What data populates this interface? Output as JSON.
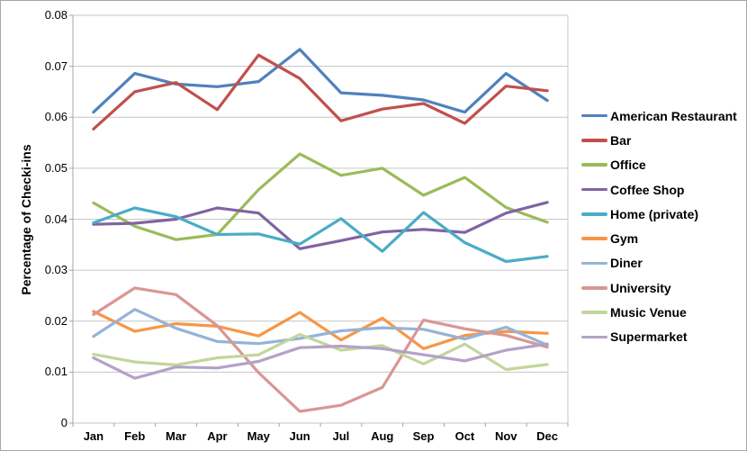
{
  "chart_data": {
    "type": "line",
    "title": "",
    "xlabel": "",
    "ylabel": "Percentage of Checki-ins",
    "x_categories": [
      "Jan",
      "Feb",
      "Mar",
      "Apr",
      "May",
      "Jun",
      "Jul",
      "Aug",
      "Sep",
      "Oct",
      "Nov",
      "Dec"
    ],
    "y_ticks": [
      "0",
      "0.01",
      "0.02",
      "0.03",
      "0.04",
      "0.05",
      "0.06",
      "0.07",
      "0.08"
    ],
    "ylim": [
      0,
      0.08
    ],
    "grid": "horizontal",
    "legend_position": "right",
    "series": [
      {
        "name": "American Restaurant",
        "color": "#4F81BD",
        "values": [
          0.061,
          0.0686,
          0.0665,
          0.066,
          0.067,
          0.0733,
          0.0648,
          0.0643,
          0.0634,
          0.061,
          0.0686,
          0.0633
        ]
      },
      {
        "name": "Bar",
        "color": "#C0504D",
        "values": [
          0.0577,
          0.065,
          0.0668,
          0.0615,
          0.0722,
          0.0676,
          0.0593,
          0.0616,
          0.0627,
          0.0588,
          0.0661,
          0.0652
        ]
      },
      {
        "name": "Office",
        "color": "#9BBB59",
        "values": [
          0.0432,
          0.0386,
          0.036,
          0.037,
          0.0458,
          0.0528,
          0.0486,
          0.05,
          0.0447,
          0.0482,
          0.0423,
          0.0394
        ]
      },
      {
        "name": "Coffee Shop",
        "color": "#8064A2",
        "values": [
          0.039,
          0.0392,
          0.04,
          0.0422,
          0.0412,
          0.0342,
          0.0358,
          0.0375,
          0.038,
          0.0374,
          0.0412,
          0.0433
        ]
      },
      {
        "name": "Home (private)",
        "color": "#4BACC6",
        "values": [
          0.0393,
          0.0422,
          0.0405,
          0.037,
          0.0371,
          0.0351,
          0.0401,
          0.0337,
          0.0413,
          0.0354,
          0.0317,
          0.0327
        ]
      },
      {
        "name": "Gym",
        "color": "#F79646",
        "values": [
          0.0219,
          0.018,
          0.0195,
          0.019,
          0.0171,
          0.0217,
          0.0163,
          0.0206,
          0.0146,
          0.0172,
          0.018,
          0.0176
        ]
      },
      {
        "name": "Diner",
        "color": "#95B3D7",
        "values": [
          0.017,
          0.0223,
          0.0186,
          0.016,
          0.0156,
          0.0166,
          0.0181,
          0.0187,
          0.0184,
          0.0165,
          0.0188,
          0.0153
        ]
      },
      {
        "name": "University",
        "color": "#D99694",
        "values": [
          0.0213,
          0.0265,
          0.0252,
          0.0191,
          0.0099,
          0.0023,
          0.0035,
          0.007,
          0.0202,
          0.0185,
          0.0172,
          0.0149
        ]
      },
      {
        "name": "Music Venue",
        "color": "#C3D69B",
        "values": [
          0.0135,
          0.012,
          0.0114,
          0.0128,
          0.0134,
          0.0174,
          0.0143,
          0.0152,
          0.0116,
          0.0155,
          0.0105,
          0.0115
        ]
      },
      {
        "name": "Supermarket",
        "color": "#B3A2C7",
        "values": [
          0.0128,
          0.0088,
          0.011,
          0.0108,
          0.0121,
          0.0148,
          0.0151,
          0.0146,
          0.0134,
          0.0122,
          0.0143,
          0.0155
        ]
      }
    ]
  },
  "colors": {
    "background": "#FFFFFF",
    "frame_border": "#A6A6A6",
    "gridline": "#C6C6C6",
    "axis_line": "#A6A6A6",
    "text": "#000000"
  }
}
